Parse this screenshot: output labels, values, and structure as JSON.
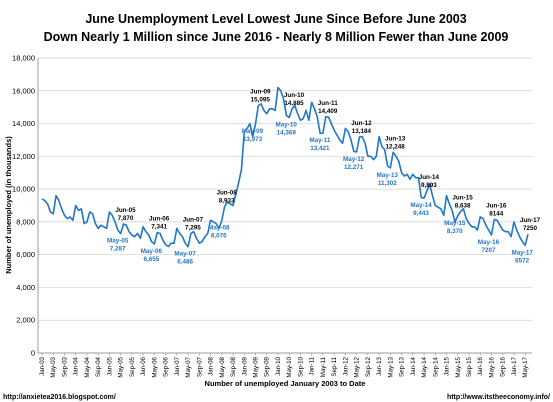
{
  "chart_data": {
    "type": "line",
    "title": "June Unemployment Level Lowest June Since Before June 2003",
    "subtitle": "Down Nearly 1 Million since June 2016 - Nearly 8 Million Fewer than June 2009",
    "xlabel": "Number of unemployed January 2003 to Date",
    "ylabel": "Number of unemployed (in thousands)",
    "ylim": [
      0,
      18000
    ],
    "yticks": [
      "0",
      "2,000",
      "4,000",
      "6,000",
      "8,000",
      "10,000",
      "12,000",
      "14,000",
      "16,000",
      "18,000"
    ],
    "grid": "horizontal",
    "legend": "none",
    "line_color": "#1f77c8",
    "x_tick_labels": [
      "Jan-03",
      "May-03",
      "Sep-03",
      "Jan-04",
      "May-04",
      "Sep-04",
      "Jan-05",
      "May-05",
      "Sep-05",
      "Jan-06",
      "May-06",
      "Sep-06",
      "Jan-07",
      "May-07",
      "Sep-07",
      "Jan-08",
      "May-08",
      "Sep-08",
      "Jan-09",
      "May-09",
      "Sep-09",
      "Jan-10",
      "May-10",
      "Sep-10",
      "Jan-11",
      "May-11",
      "Sep-11",
      "Jan-12",
      "May-12",
      "Sep-12",
      "Jan-13",
      "May-13",
      "Sep-13",
      "Jan-14",
      "May-14",
      "Sep-14",
      "Jan-15",
      "May-15",
      "Sep-15",
      "Jan-16",
      "May-16",
      "Sep-16",
      "Jan-17",
      "May-17"
    ],
    "x": [
      "Jan-03",
      "Feb-03",
      "Mar-03",
      "Apr-03",
      "May-03",
      "Jun-03",
      "Jul-03",
      "Aug-03",
      "Sep-03",
      "Oct-03",
      "Nov-03",
      "Dec-03",
      "Jan-04",
      "Feb-04",
      "Mar-04",
      "Apr-04",
      "May-04",
      "Jun-04",
      "Jul-04",
      "Aug-04",
      "Sep-04",
      "Oct-04",
      "Nov-04",
      "Dec-04",
      "Jan-05",
      "Feb-05",
      "Mar-05",
      "Apr-05",
      "May-05",
      "Jun-05",
      "Jul-05",
      "Aug-05",
      "Sep-05",
      "Oct-05",
      "Nov-05",
      "Dec-05",
      "Jan-06",
      "Feb-06",
      "Mar-06",
      "Apr-06",
      "May-06",
      "Jun-06",
      "Jul-06",
      "Aug-06",
      "Sep-06",
      "Oct-06",
      "Nov-06",
      "Dec-06",
      "Jan-07",
      "Feb-07",
      "Mar-07",
      "Apr-07",
      "May-07",
      "Jun-07",
      "Jul-07",
      "Aug-07",
      "Sep-07",
      "Oct-07",
      "Nov-07",
      "Dec-07",
      "Jan-08",
      "Feb-08",
      "Mar-08",
      "Apr-08",
      "May-08",
      "Jun-08",
      "Jul-08",
      "Aug-08",
      "Sep-08",
      "Oct-08",
      "Nov-08",
      "Dec-08",
      "Jan-09",
      "Feb-09",
      "Mar-09",
      "Apr-09",
      "May-09",
      "Jun-09",
      "Jul-09",
      "Aug-09",
      "Sep-09",
      "Oct-09",
      "Nov-09",
      "Dec-09",
      "Jan-10",
      "Feb-10",
      "Mar-10",
      "Apr-10",
      "May-10",
      "Jun-10",
      "Jul-10",
      "Aug-10",
      "Sep-10",
      "Oct-10",
      "Nov-10",
      "Dec-10",
      "Jan-11",
      "Feb-11",
      "Mar-11",
      "Apr-11",
      "May-11",
      "Jun-11",
      "Jul-11",
      "Aug-11",
      "Sep-11",
      "Oct-11",
      "Nov-11",
      "Dec-11",
      "Jan-12",
      "Feb-12",
      "Mar-12",
      "Apr-12",
      "May-12",
      "Jun-12",
      "Jul-12",
      "Aug-12",
      "Sep-12",
      "Oct-12",
      "Nov-12",
      "Dec-12",
      "Jan-13",
      "Feb-13",
      "Mar-13",
      "Apr-13",
      "May-13",
      "Jun-13",
      "Jul-13",
      "Aug-13",
      "Sep-13",
      "Oct-13",
      "Nov-13",
      "Dec-13",
      "Jan-14",
      "Feb-14",
      "Mar-14",
      "Apr-14",
      "May-14",
      "Jun-14",
      "Jul-14",
      "Aug-14",
      "Sep-14",
      "Oct-14",
      "Nov-14",
      "Dec-14",
      "Jan-15",
      "Feb-15",
      "Mar-15",
      "Apr-15",
      "May-15",
      "Jun-15",
      "Jul-15",
      "Aug-15",
      "Sep-15",
      "Oct-15",
      "Nov-15",
      "Dec-15",
      "Jan-16",
      "Feb-16",
      "Mar-16",
      "Apr-16",
      "May-16",
      "Jun-16",
      "Jul-16",
      "Aug-16",
      "Sep-16",
      "Oct-16",
      "Nov-16",
      "Dec-16",
      "Jan-17",
      "Feb-17",
      "Mar-17",
      "Apr-17",
      "May-17",
      "Jun-17"
    ],
    "series": [
      {
        "values": [
          9400,
          9300,
          9100,
          8600,
          8500,
          9600,
          9300,
          8800,
          8400,
          8200,
          8300,
          8100,
          9000,
          8700,
          8800,
          7900,
          8000,
          8600,
          8500,
          7900,
          7600,
          7800,
          7700,
          7600,
          8600,
          8400,
          8000,
          7500,
          7287,
          7870,
          7800,
          7400,
          7200,
          7100,
          7300,
          7000,
          7700,
          7400,
          7200,
          6800,
          6655,
          7341,
          7300,
          6900,
          6600,
          6500,
          6700,
          6700,
          7600,
          7300,
          7100,
          6700,
          6486,
          7295,
          7400,
          7000,
          6700,
          6800,
          7100,
          7300,
          8100,
          8000,
          7900,
          7600,
          8076,
          8933,
          9200,
          9100,
          9000,
          9700,
          10400,
          11200,
          13500,
          13700,
          14000,
          13200,
          13973,
          15095,
          15200,
          14800,
          14600,
          14900,
          14900,
          14800,
          16200,
          16000,
          15500,
          14500,
          14369,
          14885,
          15100,
          14600,
          14200,
          14300,
          14800,
          14200,
          15300,
          14900,
          14400,
          13400,
          13421,
          14409,
          14400,
          14000,
          13600,
          13300,
          13000,
          12800,
          13700,
          13500,
          13000,
          12300,
          12271,
          13184,
          13200,
          12800,
          12000,
          12000,
          11800,
          12000,
          13200,
          12600,
          12400,
          11400,
          11302,
          12248,
          12000,
          11700,
          11000,
          10800,
          10900,
          10600,
          10900,
          10700,
          10700,
          9500,
          9443,
          9893,
          10300,
          9600,
          9000,
          8900,
          8800,
          8400,
          9600,
          9100,
          8700,
          8000,
          8370,
          8638,
          8800,
          8200,
          7900,
          7700,
          7700,
          7500,
          8300,
          8200,
          7800,
          7500,
          7207,
          8144,
          8100,
          7800,
          7500,
          7400,
          7400,
          7100,
          8000,
          7500,
          7100,
          6800,
          6572,
          7250
        ]
      }
    ],
    "annotations": [
      {
        "type": "june",
        "label": "Jun-05",
        "value": "7,870",
        "x": "Jun-05"
      },
      {
        "type": "june",
        "label": "Jun-06",
        "value": "7,341",
        "x": "Jun-06"
      },
      {
        "type": "june",
        "label": "Jun-07",
        "value": "7,295",
        "x": "Jun-07"
      },
      {
        "type": "june",
        "label": "Jun-08",
        "value": "8,933",
        "x": "Jun-08"
      },
      {
        "type": "june",
        "label": "Jun-09",
        "value": "15,095",
        "x": "Jun-09"
      },
      {
        "type": "june",
        "label": "Jun-10",
        "value": "14,885",
        "x": "Jun-10"
      },
      {
        "type": "june",
        "label": "Jun-11",
        "value": "14,409",
        "x": "Jun-11"
      },
      {
        "type": "june",
        "label": "Jun-12",
        "value": "13,184",
        "x": "Jun-12"
      },
      {
        "type": "june",
        "label": "Jun-13",
        "value": "12,248",
        "x": "Jun-13"
      },
      {
        "type": "june",
        "label": "Jun-14",
        "value": "9,893",
        "x": "Jun-14"
      },
      {
        "type": "june",
        "label": "Jun-15",
        "value": "8,638",
        "x": "Jun-15"
      },
      {
        "type": "june",
        "label": "Jun-16",
        "value": "8144",
        "x": "Jun-16"
      },
      {
        "type": "june",
        "label": "Jun-17",
        "value": "7250",
        "x": "Jun-17"
      },
      {
        "type": "may",
        "label": "May-05",
        "value": "7,287",
        "x": "May-05"
      },
      {
        "type": "may",
        "label": "May-06",
        "value": "6,655",
        "x": "May-06"
      },
      {
        "type": "may",
        "label": "May-07",
        "value": "6,486",
        "x": "May-07"
      },
      {
        "type": "may",
        "label": "May-08",
        "value": "8,076",
        "x": "May-08"
      },
      {
        "type": "may",
        "label": "May-09",
        "value": "13,973",
        "x": "May-09"
      },
      {
        "type": "may",
        "label": "May-10",
        "value": "14,369",
        "x": "May-10"
      },
      {
        "type": "may",
        "label": "May-11",
        "value": "13,421",
        "x": "May-11"
      },
      {
        "type": "may",
        "label": "May-12",
        "value": "12,271",
        "x": "May-12"
      },
      {
        "type": "may",
        "label": "May-13",
        "value": "11,302",
        "x": "May-13"
      },
      {
        "type": "may",
        "label": "May-14",
        "value": "9,443",
        "x": "May-14"
      },
      {
        "type": "may",
        "label": "May-15",
        "value": "8,370",
        "x": "May-15"
      },
      {
        "type": "may",
        "label": "May-16",
        "value": "7207",
        "x": "May-16"
      },
      {
        "type": "may",
        "label": "May-17",
        "value": "6572",
        "x": "May-17"
      }
    ]
  },
  "footer": {
    "left": "http://anxietea2016.blogspot.com/",
    "right": "http://www.itstheeconomy.info/"
  }
}
